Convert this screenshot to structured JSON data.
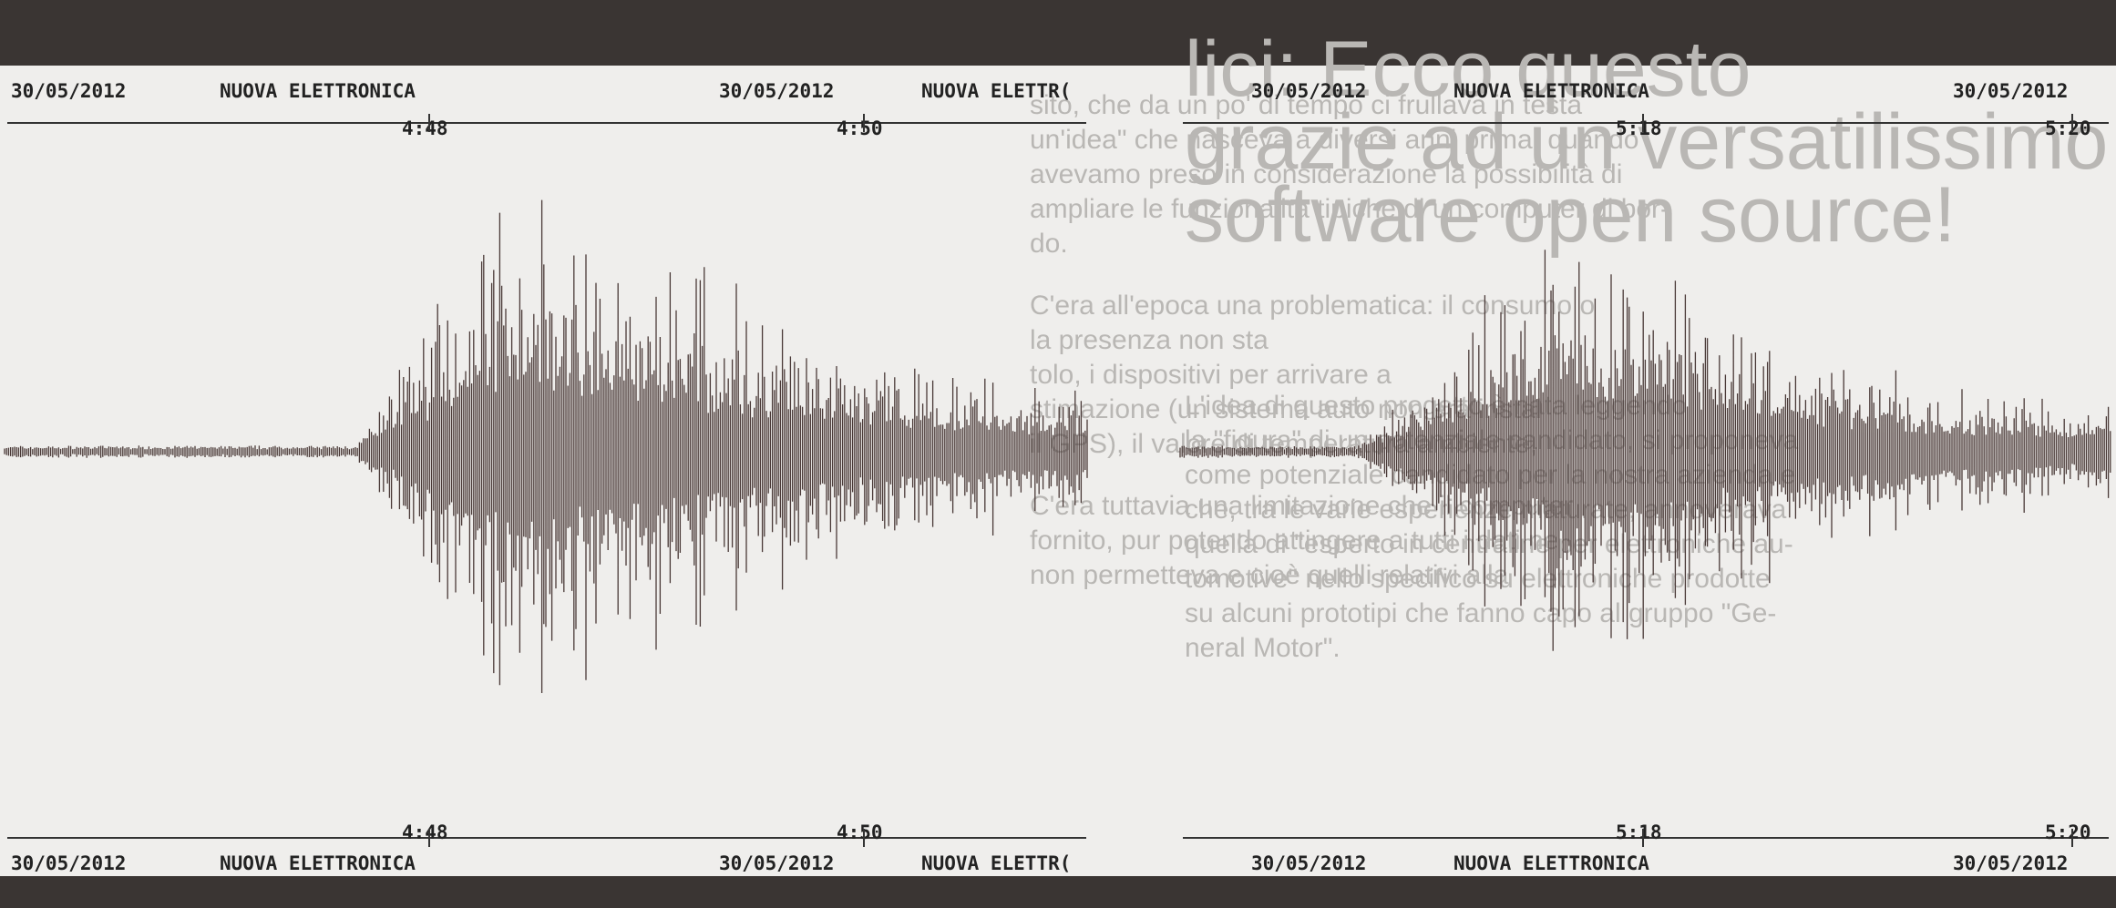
{
  "strips": [
    {
      "top": {
        "date_left": "30/05/2012",
        "brand_left": "NUOVA ELETTRONICA",
        "date_right": "30/05/2012",
        "brand_right": "NUOVA ELETTR(",
        "time_left": "4:48",
        "time_right": "4:50"
      },
      "bottom": {
        "date_left": "30/05/2012",
        "brand_left": "NUOVA ELETTRONICA",
        "date_right": "30/05/2012",
        "brand_right": "NUOVA ELETTR(",
        "time_left": "4:48",
        "time_right": "4:50"
      }
    },
    {
      "top": {
        "date_left": "30/05/2012",
        "brand_left": "NUOVA ELETTRONICA",
        "date_right": "30/05/2012",
        "time_left": "5:18",
        "time_right": "5:20"
      },
      "bottom": {
        "date_left": "30/05/2012",
        "brand_left": "NUOVA ELETTRONICA",
        "date_right": "30/05/2012",
        "time_left": "5:18",
        "time_right": "5:20"
      }
    }
  ],
  "background_text": {
    "headline": [
      "lici: Ecco questo",
      "grazie ad un versatilissimo",
      "software open source!"
    ],
    "left_column": [
      "sito, che da un po' di tempo ci frullava in testa",
      "un'idea\" che nasceva a diversi anni prima, quando",
      "avevamo preso in considerazione la possibilità di",
      "ampliare le funzionalità tipiche di un computer di bor-",
      "do.",
      "C'era all'epoca una problematica: il consumo o",
      "la presenza non sta",
      "tolo, i dispositivi per arrivare a",
      "stimazione (un sistema auto non era instal",
      "il GPS), il valore di temperatura ambiente,",
      "C'era tuttavia una limitazione che il computer",
      "fornito, pur potendo attingere a tutti i dati ne",
      "non permetteva e cioè quelli relativi alla"
    ],
    "right_column": [
      "L'idea di questo progetto è nata leggendo",
      "la \"figura\" di un potenziale candidato, si proponeva",
      "come potenziale candidato per la nostra azienda e",
      "che, tra le varie esperienze maturate, annoverava",
      "quella di \"esperto in centraline per elettroniche au-",
      "tomotive\" nello specifico su elettroniche prodotte",
      "su alcuni prototipi che fanno capo al gruppo \"Ge-",
      "neral Motor\"."
    ]
  }
}
